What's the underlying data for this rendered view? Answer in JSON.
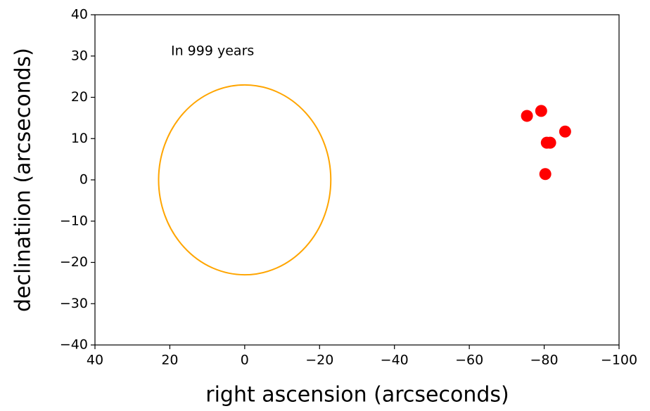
{
  "chart_data": {
    "type": "scatter",
    "annotation": "In 999 years",
    "xlabel": "right ascension (arcseconds)",
    "ylabel": "declinatiion (arcseconds)",
    "x": [
      -75.4,
      -79.2,
      -85.6,
      -80.7,
      -81.6,
      -80.3
    ],
    "values": [
      15.5,
      16.7,
      11.7,
      9.0,
      9.0,
      1.4
    ],
    "color": "#ff0000",
    "circle": {
      "x": 0,
      "y": 0,
      "radius": 23,
      "color": "#ffa500"
    },
    "xlim": [
      40,
      -100
    ],
    "ylim": [
      -40,
      40
    ],
    "xticks": [
      40,
      20,
      0,
      {
        "value": -20,
        "label": "−20"
      },
      {
        "value": -40,
        "label": "−40"
      },
      {
        "value": -60,
        "label": "−60"
      },
      {
        "value": -80,
        "label": "−80"
      },
      {
        "value": -100,
        "label": "−100"
      }
    ],
    "yticks": [
      {
        "value": -40,
        "label": "−40"
      },
      {
        "value": -30,
        "label": "−30"
      },
      {
        "value": -20,
        "label": "−20"
      },
      {
        "value": -10,
        "label": "−10"
      },
      0,
      10,
      20,
      30,
      40
    ]
  }
}
